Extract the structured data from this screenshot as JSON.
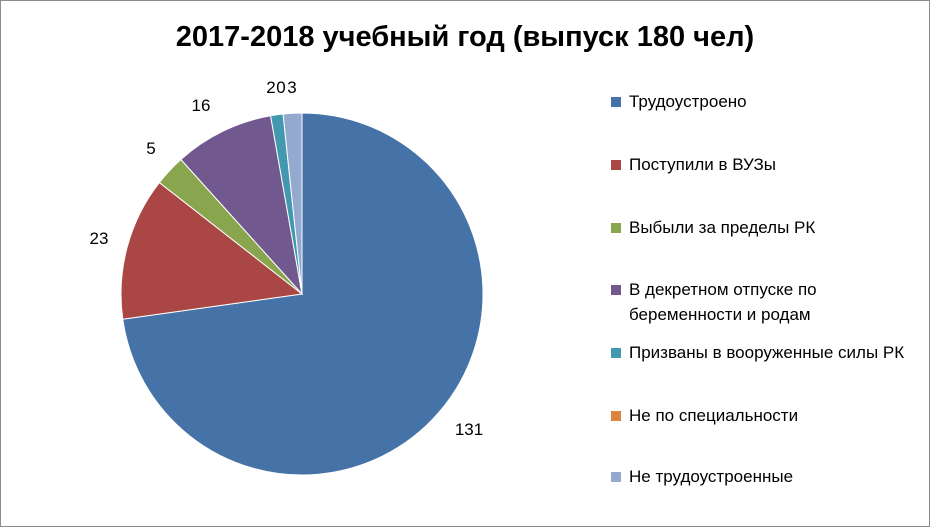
{
  "chart_data": {
    "type": "pie",
    "title": "2017-2018 учебный год (выпуск 180 чел)",
    "categories": [
      "Трудоустроено",
      "Поступили в ВУЗы",
      "Выбыли за пределы РК",
      "В декретном отпуске по беременности и родам",
      "Призваны в вооруженные силы РК",
      "Не по специальности",
      "Не трудоустроенные"
    ],
    "values": [
      131,
      23,
      5,
      16,
      2,
      0,
      3
    ],
    "data_labels": [
      "131",
      "23",
      "5",
      "16",
      "2",
      "0",
      "3"
    ],
    "colors": [
      "#4572A7",
      "#AA4643",
      "#89A54E",
      "#71588F",
      "#4198AF",
      "#DB843D",
      "#93A9CF"
    ],
    "legend_position": "right",
    "start_angle": "12 o'clock",
    "direction": "clockwise"
  }
}
